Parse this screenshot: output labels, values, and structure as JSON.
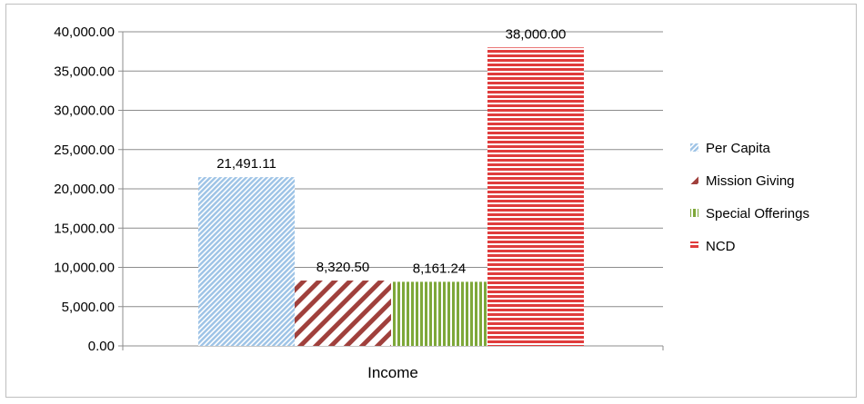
{
  "chart_data": {
    "type": "bar",
    "categories": [
      "Income"
    ],
    "series": [
      {
        "name": "Per Capita",
        "values": [
          21491.11
        ],
        "label": "21,491.11",
        "color": "#9dc3e6",
        "pattern": "diagonal-fine"
      },
      {
        "name": "Mission Giving",
        "values": [
          8320.5
        ],
        "label": "8,320.50",
        "color": "#a0403c",
        "pattern": "diagonal-wide"
      },
      {
        "name": "Special Offerings",
        "values": [
          8161.24
        ],
        "label": "8,161.24",
        "color": "#7ea83a",
        "pattern": "vertical"
      },
      {
        "name": "NCD",
        "values": [
          38000.0
        ],
        "label": "38,000.00",
        "color": "#e03c3c",
        "pattern": "horizontal"
      }
    ],
    "ylim": [
      0,
      40000
    ],
    "yticks": [
      0,
      5000,
      10000,
      15000,
      20000,
      25000,
      30000,
      35000,
      40000
    ],
    "ytick_labels": [
      "0.00",
      "5,000.00",
      "10,000.00",
      "15,000.00",
      "20,000.00",
      "25,000.00",
      "30,000.00",
      "35,000.00",
      "40,000.00"
    ],
    "grid": true,
    "legend_position": "right",
    "title": "",
    "xlabel": "",
    "ylabel": ""
  }
}
